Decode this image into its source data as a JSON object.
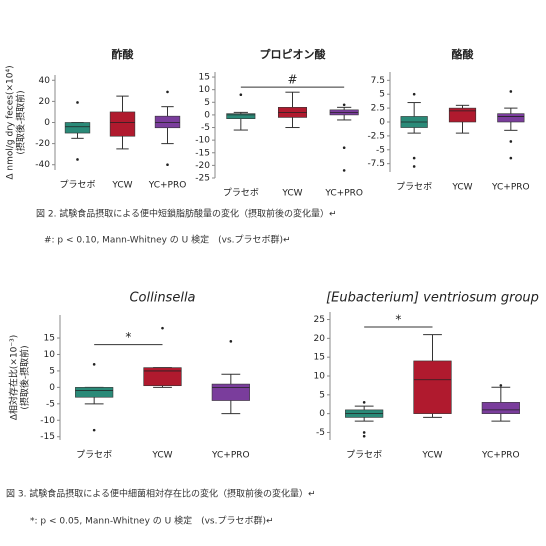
{
  "chart_data": [
    {
      "type": "box",
      "title": "酢酸",
      "ylabel": "Δ nmol/g dry feces(×10⁴)",
      "ylabel_sub": "(摂取後-摂取前)",
      "categories": [
        "プラセボ",
        "YCW",
        "YC+PRO"
      ],
      "colors": [
        "#2a8a78",
        "#b01a2e",
        "#7a3d9c"
      ],
      "boxes": [
        {
          "low": -15,
          "q1": -10,
          "median": -4,
          "q3": 0,
          "high": 0,
          "outliers": [
            19,
            -35
          ]
        },
        {
          "low": -25,
          "q1": -13,
          "median": 0,
          "q3": 10,
          "high": 25,
          "outliers": []
        },
        {
          "low": -20,
          "q1": -5,
          "median": 0,
          "q3": 6,
          "high": 15,
          "outliers": [
            29,
            -40
          ]
        }
      ],
      "ylim": [
        -45,
        45
      ],
      "yticks": [
        -40,
        -20,
        0,
        20,
        40
      ]
    },
    {
      "type": "box",
      "title": "プロピオン酸",
      "categories": [
        "プラセボ",
        "YCW",
        "YC+PRO"
      ],
      "colors": [
        "#2a8a78",
        "#b01a2e",
        "#7a3d9c"
      ],
      "boxes": [
        {
          "low": -6,
          "q1": -1.5,
          "median": 0,
          "q3": 0.5,
          "high": 1,
          "outliers": [
            8
          ]
        },
        {
          "low": -5,
          "q1": -1,
          "median": 1,
          "q3": 3,
          "high": 9,
          "outliers": []
        },
        {
          "low": -2,
          "q1": 0,
          "median": 1,
          "q3": 2,
          "high": 3,
          "outliers": [
            4,
            -13,
            -22
          ]
        }
      ],
      "annotations": [
        {
          "text": "#",
          "between": [
            "プラセボ",
            "YC+PRO"
          ],
          "y": 11
        }
      ],
      "ylim": [
        -25,
        17
      ],
      "yticks": [
        -25,
        -20,
        -15,
        -10,
        -5,
        0,
        5,
        10,
        15
      ]
    },
    {
      "type": "box",
      "title": "酪酸",
      "categories": [
        "プラセボ",
        "YCW",
        "YC+PRO"
      ],
      "colors": [
        "#2a8a78",
        "#b01a2e",
        "#7a3d9c"
      ],
      "boxes": [
        {
          "low": -2,
          "q1": -1,
          "median": 0,
          "q3": 1,
          "high": 3.5,
          "outliers": [
            5,
            -6.5,
            -8
          ]
        },
        {
          "low": -2,
          "q1": 0,
          "median": 2,
          "q3": 2.5,
          "high": 3,
          "outliers": []
        },
        {
          "low": -1.5,
          "q1": 0,
          "median": 1,
          "q3": 1.5,
          "high": 2.5,
          "outliers": [
            5.5,
            -3.5,
            -6.5
          ]
        }
      ],
      "ylim": [
        -9,
        9
      ],
      "yticks": [
        -7.5,
        -5,
        -2.5,
        0,
        2.5,
        5,
        7.5
      ]
    },
    {
      "type": "box",
      "title": "Collinsella",
      "ylabel": "Δ相対存在比(×10⁻³)",
      "ylabel_sub": "(摂取後-摂取前)",
      "categories": [
        "プラセボ",
        "YCW",
        "YC+PRO"
      ],
      "colors": [
        "#2a8a78",
        "#b01a2e",
        "#7a3d9c"
      ],
      "boxes": [
        {
          "low": -5,
          "q1": -3,
          "median": -1,
          "q3": 0,
          "high": 0,
          "outliers": [
            7,
            -13
          ]
        },
        {
          "low": 0,
          "q1": 0.5,
          "median": 5,
          "q3": 6,
          "high": 6,
          "outliers": [
            18
          ]
        },
        {
          "low": -8,
          "q1": -4,
          "median": 0,
          "q3": 1,
          "high": 4,
          "outliers": [
            14
          ]
        }
      ],
      "annotations": [
        {
          "text": "*",
          "between": [
            "プラセボ",
            "YCW"
          ],
          "y": 13
        }
      ],
      "ylim": [
        -16,
        22
      ],
      "yticks": [
        -15,
        -10,
        -5,
        0,
        5,
        10,
        15
      ]
    },
    {
      "type": "box",
      "title": "[Eubacterium] ventriosum group",
      "categories": [
        "プラセボ",
        "YCW",
        "YC+PRO"
      ],
      "colors": [
        "#2a8a78",
        "#b01a2e",
        "#7a3d9c"
      ],
      "boxes": [
        {
          "low": -2,
          "q1": -1,
          "median": 0,
          "q3": 1,
          "high": 2,
          "outliers": [
            3,
            -5,
            -6
          ]
        },
        {
          "low": -1,
          "q1": 0,
          "median": 9,
          "q3": 14,
          "high": 21,
          "outliers": []
        },
        {
          "low": -2,
          "q1": 0,
          "median": 1,
          "q3": 3,
          "high": 7,
          "outliers": [
            7.5
          ]
        }
      ],
      "annotations": [
        {
          "text": "*",
          "between": [
            "プラセボ",
            "YCW"
          ],
          "y": 23
        }
      ],
      "ylim": [
        -7,
        27
      ],
      "yticks": [
        -5,
        0,
        5,
        10,
        15,
        20,
        25
      ]
    }
  ],
  "figure2": {
    "caption": "図 2. 試験食品摂取による便中短鎖脂肪酸量の変化（摂取前後の変化量）↵",
    "note": "#: p < 0.10, Mann-Whitney の U 検定　(vs.プラセボ群)↵"
  },
  "figure3": {
    "caption": "図 3. 試験食品摂取による便中細菌相対存在比の変化（摂取前後の変化量）↵",
    "note": "*: p < 0.05, Mann-Whitney の U 検定　(vs.プラセボ群)↵"
  }
}
